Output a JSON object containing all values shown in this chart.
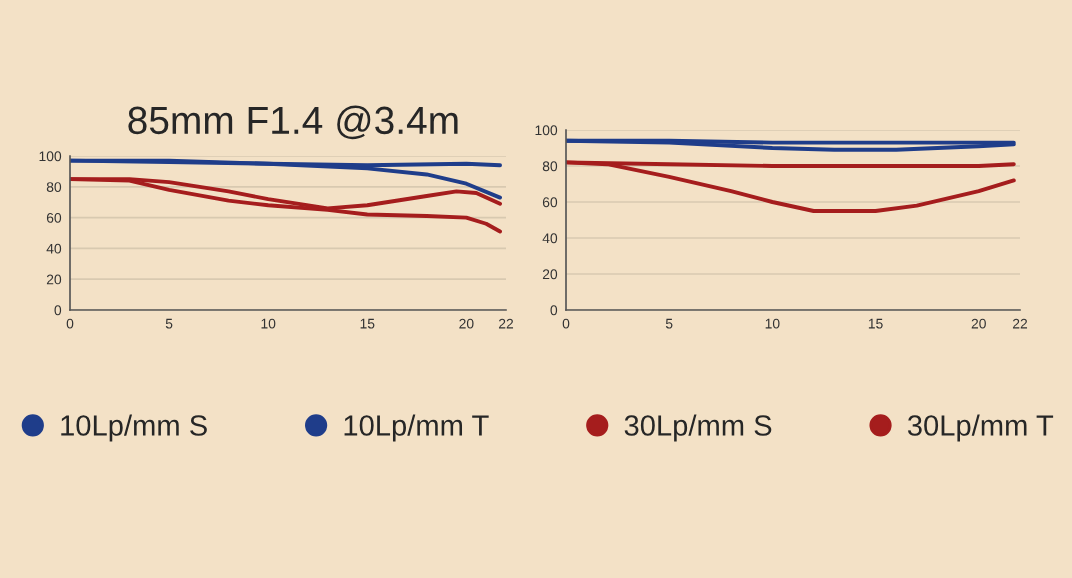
{
  "chart_data": [
    {
      "type": "line",
      "title": "85mm F1.4 @3.4m",
      "xlim": [
        0,
        22
      ],
      "xticks": [
        0,
        5,
        10,
        15,
        20,
        22
      ],
      "ylim": [
        0,
        100
      ],
      "yticks": [
        0,
        20,
        40,
        60,
        80,
        100
      ],
      "grid": "y",
      "legend": "bottom",
      "marker": "none",
      "line_style": "solid",
      "series": [
        {
          "name": "10Lp/mm S",
          "color": "#1f3d8a",
          "x": [
            0,
            5,
            10,
            15,
            20,
            21.7
          ],
          "values": [
            97,
            97,
            95,
            94,
            95,
            94
          ]
        },
        {
          "name": "10Lp/mm T",
          "color": "#1f3d8a",
          "x": [
            0,
            5,
            10,
            15,
            18,
            20,
            21.7
          ],
          "values": [
            97,
            96,
            95,
            92,
            88,
            82,
            73
          ]
        },
        {
          "name": "30Lp/mm S",
          "color": "#a51d1d",
          "x": [
            0,
            3,
            5,
            8,
            10,
            13,
            15,
            18,
            19.5,
            20.5,
            21.7
          ],
          "values": [
            85,
            85,
            83,
            77,
            72,
            66,
            68,
            74,
            77,
            76,
            69
          ]
        },
        {
          "name": "30Lp/mm T",
          "color": "#a51d1d",
          "x": [
            0,
            3,
            5,
            8,
            10,
            13,
            15,
            18,
            20,
            21,
            21.7
          ],
          "values": [
            85,
            84,
            78,
            71,
            68,
            65,
            62,
            61,
            60,
            56,
            51
          ]
        }
      ]
    },
    {
      "type": "line",
      "xlim": [
        0,
        22
      ],
      "xticks": [
        0,
        5,
        10,
        15,
        20,
        22
      ],
      "ylim": [
        0,
        100
      ],
      "yticks": [
        0,
        20,
        40,
        60,
        80,
        100
      ],
      "grid": "y",
      "marker": "none",
      "line_style": "solid",
      "series": [
        {
          "color": "#1f3d8a",
          "x": [
            0,
            5,
            10,
            15,
            20,
            21.7
          ],
          "values": [
            94,
            94,
            93,
            93,
            93,
            93
          ]
        },
        {
          "color": "#1f3d8a",
          "x": [
            0,
            5,
            10,
            13,
            16,
            20,
            21.7
          ],
          "values": [
            94,
            93,
            90,
            89,
            89,
            91,
            92
          ]
        },
        {
          "color": "#a51d1d",
          "x": [
            0,
            5,
            10,
            15,
            20,
            21.7
          ],
          "values": [
            82,
            81,
            80,
            80,
            80,
            81
          ]
        },
        {
          "color": "#a51d1d",
          "x": [
            0,
            2,
            5,
            8,
            10,
            12,
            15,
            17,
            20,
            21.7
          ],
          "values": [
            82,
            81,
            74,
            66,
            60,
            55,
            55,
            58,
            66,
            72
          ]
        }
      ]
    }
  ]
}
